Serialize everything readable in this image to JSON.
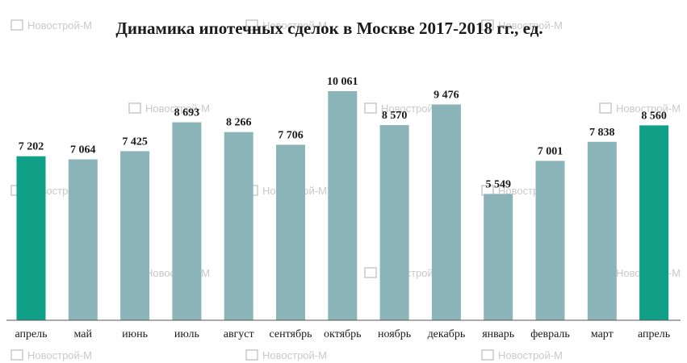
{
  "watermark": "Новострой-М",
  "colors": {
    "bar": "#8ab4b8",
    "highlight": "#10a088",
    "axis": "#555555",
    "watermark": "#c9c9c9"
  },
  "chart_data": {
    "type": "bar",
    "title": "Динамика ипотечных сделок в Москве 2017-2018 гг., ед.",
    "categories": [
      "апрель",
      "май",
      "июнь",
      "июль",
      "август",
      "сентябрь",
      "октябрь",
      "ноябрь",
      "декабрь",
      "январь",
      "февраль",
      "март",
      "апрель"
    ],
    "values": [
      7202,
      7064,
      7425,
      8693,
      8266,
      7706,
      10061,
      8570,
      9476,
      5549,
      7001,
      7838,
      8560
    ],
    "value_labels": [
      "7 202",
      "7 064",
      "7 425",
      "8 693",
      "8 266",
      "7 706",
      "10 061",
      "8 570",
      "9 476",
      "5 549",
      "7 001",
      "7 838",
      "8 560"
    ],
    "highlighted": [
      0,
      12
    ],
    "ylim": [
      0,
      10061
    ],
    "grid": false,
    "legend": "none"
  }
}
